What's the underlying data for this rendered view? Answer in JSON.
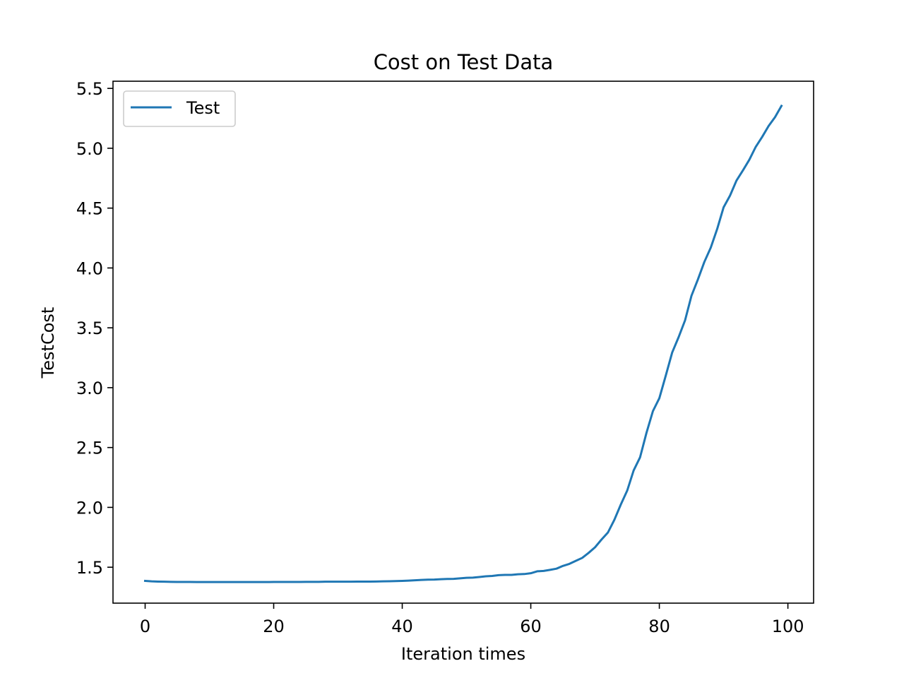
{
  "chart_data": {
    "type": "line",
    "title": "Cost on Test Data",
    "xlabel": "Iteration times",
    "ylabel": "TestCost",
    "xlim": [
      -5,
      104
    ],
    "ylim": [
      1.2,
      5.56
    ],
    "xticks": [
      0,
      20,
      40,
      60,
      80,
      100
    ],
    "yticks": [
      1.5,
      2.0,
      2.5,
      3.0,
      3.5,
      4.0,
      4.5,
      5.0,
      5.5
    ],
    "xtick_labels": [
      "0",
      "20",
      "40",
      "60",
      "80",
      "100"
    ],
    "ytick_labels": [
      "1.5",
      "2.0",
      "2.5",
      "3.0",
      "3.5",
      "4.0",
      "4.5",
      "5.0",
      "5.5"
    ],
    "grid": false,
    "legend": {
      "position": "top-left"
    },
    "series": [
      {
        "name": "Test",
        "color": "#1f77b4",
        "x": [
          0,
          1,
          2,
          3,
          4,
          5,
          6,
          7,
          8,
          9,
          10,
          11,
          12,
          13,
          14,
          15,
          16,
          17,
          18,
          19,
          20,
          21,
          22,
          23,
          24,
          25,
          26,
          27,
          28,
          29,
          30,
          31,
          32,
          33,
          34,
          35,
          36,
          37,
          38,
          39,
          40,
          41,
          42,
          43,
          44,
          45,
          46,
          47,
          48,
          49,
          50,
          51,
          52,
          53,
          54,
          55,
          56,
          57,
          58,
          59,
          60,
          61,
          62,
          63,
          64,
          65,
          66,
          67,
          68,
          69,
          70,
          71,
          72,
          73,
          74,
          75,
          76,
          77,
          78,
          79,
          80,
          81,
          82,
          83,
          84,
          85,
          86,
          87,
          88,
          89,
          90,
          91,
          92,
          93,
          94,
          95,
          96,
          97,
          98,
          99
        ],
        "y": [
          1.386,
          1.382,
          1.38,
          1.379,
          1.378,
          1.377,
          1.377,
          1.377,
          1.376,
          1.376,
          1.376,
          1.376,
          1.376,
          1.376,
          1.376,
          1.376,
          1.376,
          1.376,
          1.376,
          1.376,
          1.377,
          1.377,
          1.377,
          1.377,
          1.377,
          1.378,
          1.378,
          1.378,
          1.379,
          1.379,
          1.379,
          1.379,
          1.379,
          1.38,
          1.38,
          1.38,
          1.381,
          1.382,
          1.383,
          1.384,
          1.386,
          1.388,
          1.391,
          1.394,
          1.396,
          1.397,
          1.4,
          1.402,
          1.403,
          1.407,
          1.412,
          1.413,
          1.418,
          1.424,
          1.427,
          1.434,
          1.436,
          1.436,
          1.441,
          1.443,
          1.45,
          1.466,
          1.469,
          1.478,
          1.488,
          1.511,
          1.528,
          1.553,
          1.578,
          1.62,
          1.667,
          1.731,
          1.79,
          1.896,
          2.023,
          2.14,
          2.308,
          2.418,
          2.623,
          2.804,
          2.912,
          3.101,
          3.294,
          3.422,
          3.562,
          3.768,
          3.904,
          4.05,
          4.17,
          4.326,
          4.507,
          4.605,
          4.73,
          4.815,
          4.904,
          5.012,
          5.095,
          5.186,
          5.26,
          5.354
        ]
      }
    ]
  }
}
